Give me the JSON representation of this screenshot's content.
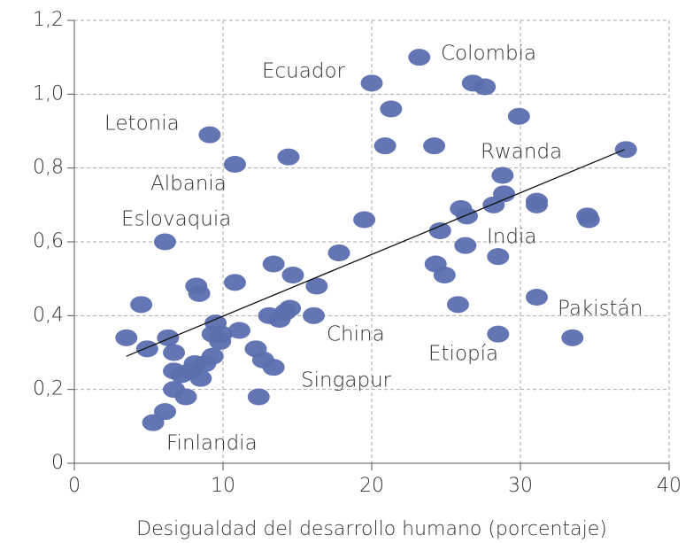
{
  "chart_data": {
    "type": "scatter",
    "xlabel": "Desigualdad del desarrollo humano (porcentaje)",
    "xlim": [
      0,
      40
    ],
    "ylim": [
      0,
      1.2
    ],
    "xticks": [
      0,
      10,
      20,
      30,
      40
    ],
    "yticks": [
      0,
      {
        "value": 0.2,
        "label": "0,2"
      },
      {
        "value": 0.4,
        "label": "0,4"
      },
      {
        "value": 0.6,
        "label": "0,6"
      },
      {
        "value": 0.8,
        "label": "0,8"
      },
      {
        "value": 1.0,
        "label": "1,0"
      },
      {
        "value": 1.2,
        "label": "1,2"
      }
    ],
    "grid": true,
    "color": "#5b6eae",
    "x": [
      3.5,
      4.5,
      4.9,
      5.3,
      6.1,
      6.1,
      6.3,
      6.7,
      6.7,
      6.7,
      7.5,
      7.2,
      7.8,
      8.1,
      8.2,
      8.4,
      8.5,
      8.8,
      9.1,
      9.3,
      9.3,
      9.5,
      9.8,
      9.9,
      10.8,
      10.8,
      11.1,
      12.2,
      12.7,
      12.4,
      13.1,
      13.4,
      13.4,
      13.8,
      14.2,
      14.4,
      14.5,
      14.7,
      16.1,
      16.3,
      17.8,
      19.5,
      20.0,
      20.9,
      21.3,
      23.2,
      24.2,
      24.3,
      24.6,
      24.9,
      25.8,
      26.0,
      26.4,
      26.3,
      26.8,
      27.6,
      28.2,
      28.5,
      28.5,
      28.8,
      28.9,
      29.9,
      31.1,
      31.1,
      31.1,
      33.5,
      34.5,
      34.6,
      37.1
    ],
    "values": [
      0.34,
      0.43,
      0.31,
      0.11,
      0.6,
      0.14,
      0.34,
      0.3,
      0.2,
      0.25,
      0.18,
      0.24,
      0.25,
      0.27,
      0.48,
      0.46,
      0.23,
      0.27,
      0.89,
      0.29,
      0.35,
      0.38,
      0.33,
      0.35,
      0.49,
      0.81,
      0.36,
      0.31,
      0.28,
      0.18,
      0.4,
      0.54,
      0.26,
      0.39,
      0.41,
      0.83,
      0.42,
      0.51,
      0.4,
      0.48,
      0.57,
      0.66,
      1.03,
      0.86,
      0.96,
      1.1,
      0.86,
      0.54,
      0.63,
      0.51,
      0.43,
      0.69,
      0.67,
      0.59,
      1.03,
      1.02,
      0.7,
      0.56,
      0.35,
      0.78,
      0.73,
      0.94,
      0.45,
      0.71,
      0.7,
      0.34,
      0.67,
      0.66,
      0.85
    ],
    "trend_line": {
      "x": [
        3.5,
        37
      ],
      "y": [
        0.29,
        0.85
      ]
    },
    "annotations": [
      "Colombia",
      "Ecuador",
      "Letonia",
      "Rwanda",
      "Albania",
      "Eslovaquia",
      "India",
      "Pakistán",
      "China",
      "Etiopía",
      "Singapur",
      "Finlandia"
    ]
  }
}
